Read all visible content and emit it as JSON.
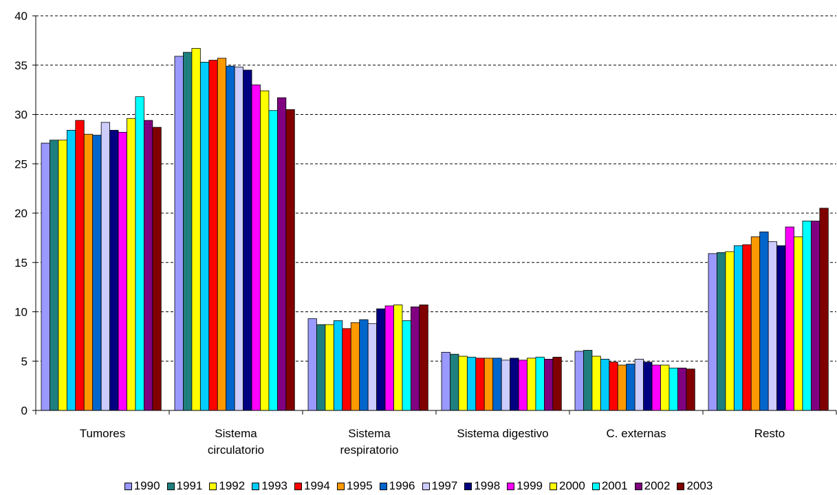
{
  "chart_data": {
    "type": "bar",
    "categories": [
      [
        "Tumores"
      ],
      [
        "Sistema",
        "circulatorio"
      ],
      [
        "Sistema",
        "respiratorio"
      ],
      [
        "Sistema digestivo"
      ],
      [
        "C. externas"
      ],
      [
        "Resto"
      ]
    ],
    "ylim": [
      0,
      40
    ],
    "yticks": [
      0,
      5,
      10,
      15,
      20,
      25,
      30,
      35,
      40
    ],
    "grid": "horizontal dashed",
    "legend_position": "bottom",
    "series": [
      {
        "name": "1990",
        "color": "#9999ff",
        "values": [
          27.1,
          35.9,
          9.3,
          5.9,
          6.0,
          15.9
        ]
      },
      {
        "name": "1991",
        "color": "#1f7f7f",
        "values": [
          27.4,
          36.3,
          8.7,
          5.7,
          6.1,
          16.0
        ]
      },
      {
        "name": "1992",
        "color": "#ffff00",
        "values": [
          27.4,
          36.7,
          8.7,
          5.5,
          5.5,
          16.1
        ]
      },
      {
        "name": "1993",
        "color": "#00ccff",
        "values": [
          28.4,
          35.3,
          9.1,
          5.4,
          5.2,
          16.7
        ]
      },
      {
        "name": "1994",
        "color": "#ff0000",
        "values": [
          29.4,
          35.5,
          8.3,
          5.3,
          4.9,
          16.8
        ]
      },
      {
        "name": "1995",
        "color": "#ff9900",
        "values": [
          28.0,
          35.7,
          8.9,
          5.3,
          4.6,
          17.6
        ]
      },
      {
        "name": "1996",
        "color": "#0066cc",
        "values": [
          27.9,
          34.9,
          9.2,
          5.3,
          4.7,
          18.1
        ]
      },
      {
        "name": "1997",
        "color": "#ccccff",
        "values": [
          29.2,
          34.8,
          8.8,
          5.1,
          5.2,
          17.1
        ]
      },
      {
        "name": "1998",
        "color": "#000080",
        "values": [
          28.4,
          34.5,
          10.3,
          5.3,
          4.9,
          16.7
        ]
      },
      {
        "name": "1999",
        "color": "#ff00ff",
        "values": [
          28.2,
          33.0,
          10.6,
          5.1,
          4.6,
          18.6
        ]
      },
      {
        "name": "2000",
        "color": "#ffff00",
        "values": [
          29.6,
          32.4,
          10.7,
          5.3,
          4.6,
          17.6
        ]
      },
      {
        "name": "2001",
        "color": "#00ffff",
        "values": [
          31.8,
          30.4,
          9.1,
          5.4,
          4.3,
          19.2
        ]
      },
      {
        "name": "2002",
        "color": "#800080",
        "values": [
          29.4,
          31.7,
          10.5,
          5.2,
          4.3,
          19.2
        ]
      },
      {
        "name": "2003",
        "color": "#800000",
        "values": [
          28.7,
          30.5,
          10.7,
          5.4,
          4.2,
          20.5
        ]
      }
    ]
  }
}
